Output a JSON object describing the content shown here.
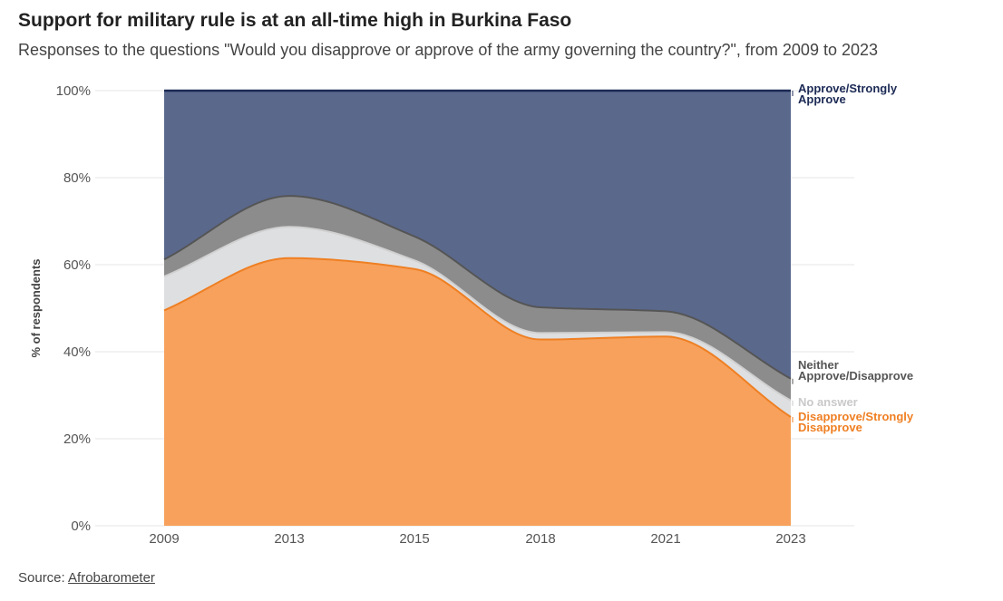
{
  "header": {
    "title": "Support for military rule is at an all-time high in Burkina Faso",
    "subtitle": "Responses to the questions \"Would you disapprove or approve of the army governing the country?\", from 2009 to 2023"
  },
  "footer": {
    "source_prefix": "Source: ",
    "source_link": "Afrobarometer"
  },
  "chart_data": {
    "type": "area",
    "stacked": true,
    "x": [
      2009,
      2013,
      2015,
      2018,
      2021,
      2023
    ],
    "xlabel": "",
    "ylabel": "% of respondents",
    "ylim": [
      0,
      100
    ],
    "yticks": [
      "0%",
      "20%",
      "40%",
      "60%",
      "80%",
      "100%"
    ],
    "xticks": [
      "2009",
      "2013",
      "2015",
      "2018",
      "2021",
      "2023"
    ],
    "grid": true,
    "legend": "direct labels at right end",
    "series": [
      {
        "name": "Disapprove/Strongly Disapprove",
        "label_lines": [
          "Disapprove/Strongly",
          "Disapprove"
        ],
        "color": "#f7a15c",
        "line": "#ef7f22",
        "label_color": "#ef7f22",
        "values": [
          49.5,
          61.5,
          59.0,
          42.8,
          43.5,
          25.0
        ]
      },
      {
        "name": "No answer",
        "label_lines": [
          "No answer"
        ],
        "color": "#dedfe1",
        "line": "#d0d0d0",
        "label_color": "#c9c9c9",
        "values": [
          7.8,
          7.2,
          2.0,
          1.5,
          1.0,
          3.8
        ]
      },
      {
        "name": "Neither Approve/Disapprove",
        "label_lines": [
          "Neither",
          "Approve/Disapprove"
        ],
        "color": "#8c8c8c",
        "line": "#555555",
        "label_color": "#555555",
        "values": [
          3.9,
          7.1,
          5.5,
          5.9,
          4.8,
          5.0
        ]
      },
      {
        "name": "Approve/Strongly Approve",
        "label_lines": [
          "Approve/Strongly",
          "Approve"
        ],
        "color": "#5a688c",
        "line": "#1c2a55",
        "label_color": "#1c2a55",
        "values": [
          38.8,
          24.2,
          33.5,
          49.8,
          50.7,
          66.2
        ]
      }
    ]
  }
}
